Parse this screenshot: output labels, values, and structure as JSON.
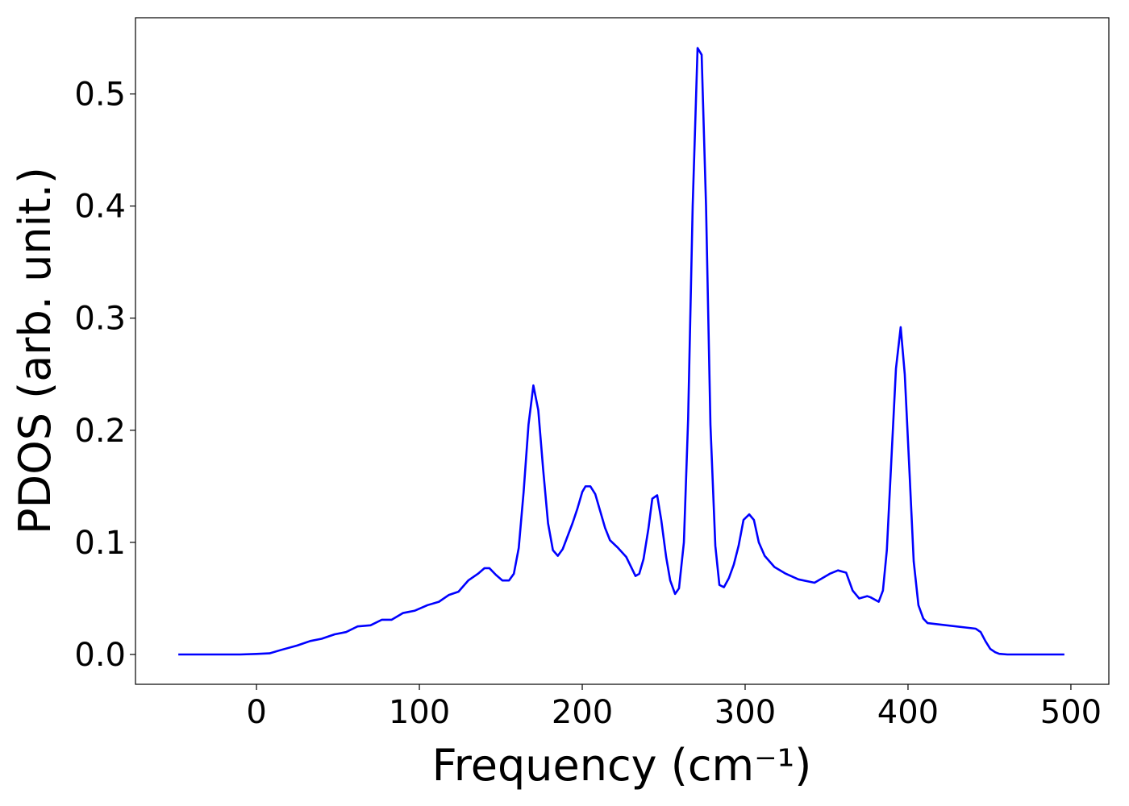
{
  "chart_data": {
    "type": "line",
    "xlabel": "Frequency (cm⁻¹)",
    "ylabel": "PDOS (arb. unit.)",
    "x": [
      -48,
      -10,
      0,
      8,
      15,
      25,
      33,
      40,
      48,
      55,
      62,
      70,
      77,
      83,
      90,
      97,
      105,
      112,
      118,
      124,
      130,
      136,
      140,
      143,
      147,
      151,
      155,
      158,
      161,
      164,
      167,
      170,
      173,
      176,
      179,
      182,
      185,
      188,
      194,
      197,
      200,
      202,
      205,
      208,
      211,
      214,
      217,
      222,
      227,
      232.7,
      235,
      237.6,
      240.6,
      243,
      246,
      248.5,
      251.5,
      254,
      257,
      259.4,
      262.4,
      265,
      267.8,
      270.8,
      273.3,
      276,
      278.7,
      281.7,
      284.2,
      287,
      290,
      293,
      296,
      299,
      302.5,
      305.4,
      308.4,
      312,
      318,
      325,
      332.7,
      342.6,
      352,
      357,
      362,
      366,
      370,
      375,
      377,
      382,
      384.6,
      387,
      390,
      392.6,
      395.5,
      398,
      401,
      403.5,
      406.4,
      409.4,
      412,
      441.6,
      444.6,
      447.5,
      450.5,
      453.5,
      456,
      461,
      496
    ],
    "series": [
      {
        "name": "PDOS",
        "color": "#0000ff",
        "values": [
          0,
          0,
          0.0005,
          0.001,
          0.004,
          0.008,
          0.012,
          0.014,
          0.018,
          0.02,
          0.025,
          0.026,
          0.031,
          0.031,
          0.037,
          0.039,
          0.044,
          0.047,
          0.053,
          0.056,
          0.066,
          0.072,
          0.077,
          0.077,
          0.071,
          0.066,
          0.066,
          0.072,
          0.095,
          0.145,
          0.205,
          0.24,
          0.218,
          0.165,
          0.117,
          0.093,
          0.088,
          0.094,
          0.117,
          0.13,
          0.145,
          0.15,
          0.15,
          0.143,
          0.128,
          0.113,
          0.102,
          0.095,
          0.087,
          0.07,
          0.072,
          0.085,
          0.112,
          0.139,
          0.142,
          0.12,
          0.087,
          0.066,
          0.054,
          0.059,
          0.1,
          0.21,
          0.4,
          0.541,
          0.535,
          0.4,
          0.205,
          0.097,
          0.062,
          0.06,
          0.068,
          0.08,
          0.097,
          0.12,
          0.125,
          0.12,
          0.1,
          0.088,
          0.078,
          0.072,
          0.067,
          0.064,
          0.072,
          0.075,
          0.073,
          0.057,
          0.05,
          0.052,
          0.051,
          0.047,
          0.057,
          0.093,
          0.18,
          0.255,
          0.292,
          0.25,
          0.16,
          0.083,
          0.044,
          0.032,
          0.028,
          0.023,
          0.02,
          0.012,
          0.005,
          0.002,
          0.0006,
          0,
          0
        ]
      }
    ],
    "xlim": [
      -74.3,
      523.3
    ],
    "ylim": [
      -0.0266,
      0.568
    ],
    "xticks": [
      0,
      100,
      200,
      300,
      400,
      500
    ],
    "yticks": [
      {
        "value": 0,
        "label": "0.0"
      },
      0.1,
      0.2,
      0.3,
      0.4,
      0.5
    ],
    "grid": false
  }
}
